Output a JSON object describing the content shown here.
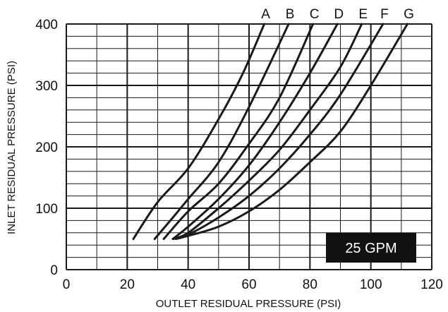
{
  "chart_data": {
    "type": "line",
    "xlabel": "OUTLET RESIDUAL PRESSURE (PSI)",
    "ylabel": "INLET RESIDUAL PRESSURE (PSI)",
    "xlim": [
      0,
      120
    ],
    "ylim": [
      0,
      400
    ],
    "x_ticks": [
      0,
      20,
      40,
      60,
      80,
      100,
      120
    ],
    "y_ticks": [
      0,
      100,
      200,
      300,
      400
    ],
    "minor_grid": {
      "x_step": 10,
      "y_step": 20
    },
    "grid": true,
    "annotation": "25 GPM",
    "colors": {
      "line": "#1a1a1a",
      "grid": "#1a1a1a",
      "badge_bg": "#111111",
      "badge_text": "#ffffff"
    },
    "series": [
      {
        "name": "A",
        "points": [
          [
            22,
            50
          ],
          [
            30,
            110
          ],
          [
            40,
            165
          ],
          [
            50,
            245
          ],
          [
            58,
            320
          ],
          [
            65,
            400
          ]
        ]
      },
      {
        "name": "B",
        "points": [
          [
            29,
            50
          ],
          [
            35,
            85
          ],
          [
            40,
            115
          ],
          [
            50,
            175
          ],
          [
            60,
            265
          ],
          [
            73,
            400
          ]
        ]
      },
      {
        "name": "C",
        "points": [
          [
            32,
            50
          ],
          [
            40,
            95
          ],
          [
            50,
            140
          ],
          [
            60,
            205
          ],
          [
            70,
            280
          ],
          [
            81,
            400
          ]
        ]
      },
      {
        "name": "D",
        "points": [
          [
            35,
            50
          ],
          [
            40,
            70
          ],
          [
            50,
            115
          ],
          [
            60,
            170
          ],
          [
            70,
            240
          ],
          [
            80,
            320
          ],
          [
            89,
            400
          ]
        ]
      },
      {
        "name": "E",
        "points": [
          [
            35,
            50
          ],
          [
            40,
            60
          ],
          [
            50,
            100
          ],
          [
            60,
            145
          ],
          [
            70,
            195
          ],
          [
            80,
            260
          ],
          [
            90,
            330
          ],
          [
            97,
            400
          ]
        ]
      },
      {
        "name": "F",
        "points": [
          [
            35,
            50
          ],
          [
            40,
            57
          ],
          [
            50,
            85
          ],
          [
            60,
            120
          ],
          [
            70,
            165
          ],
          [
            80,
            220
          ],
          [
            90,
            285
          ],
          [
            104,
            400
          ]
        ]
      },
      {
        "name": "G",
        "points": [
          [
            36,
            50
          ],
          [
            40,
            55
          ],
          [
            50,
            70
          ],
          [
            60,
            95
          ],
          [
            70,
            130
          ],
          [
            80,
            175
          ],
          [
            90,
            225
          ],
          [
            100,
            300
          ],
          [
            112,
            400
          ]
        ]
      }
    ]
  }
}
